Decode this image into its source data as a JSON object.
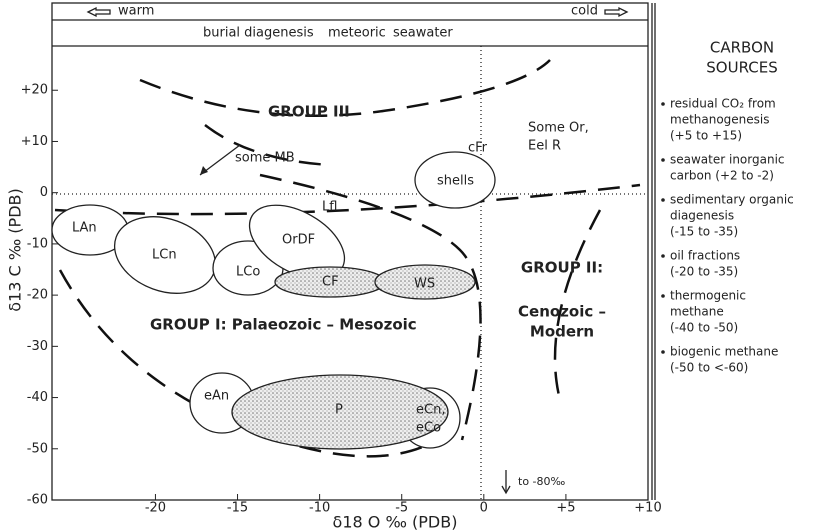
{
  "chart_data": {
    "type": "diagram",
    "xlabel": "δ18 O ‰ (PDB)",
    "ylabel": "δ13 C ‰ (PDB)",
    "xlim": [
      -26.3,
      10
    ],
    "ylim": [
      -60,
      22
    ],
    "xticks": [
      -20,
      -15,
      -10,
      -5,
      0,
      {
        "value": 5,
        "label": "+5"
      },
      {
        "value": 10,
        "label": "+10"
      }
    ],
    "yticks": [
      {
        "value": 20,
        "label": "+20"
      },
      {
        "value": 10,
        "label": "+10"
      },
      0,
      -10,
      -20,
      -30,
      -40,
      -50,
      -60
    ],
    "header": {
      "warm": "warm",
      "cold": "cold",
      "zones": [
        "burial diagenesis",
        "meteoric",
        "seawater"
      ]
    },
    "groups": [
      "GROUP III",
      "GROUP II:",
      "Cenozoic –",
      "Modern",
      "GROUP I: Palaeozoic – Mesozoic"
    ],
    "fields": [
      "LAn",
      "LCn",
      "LCo",
      "OrDF",
      "CF",
      "WS",
      "shells",
      "eAn",
      "P",
      "eCn,",
      "eCo"
    ],
    "annotations": [
      "some MB",
      "cFr",
      "Some Or,",
      "Eel R",
      "Lfl",
      "to -80‰"
    ],
    "sources": {
      "title": [
        "CARBON",
        "SOURCES"
      ],
      "items": [
        [
          "residual CO₂ from",
          "methanogenesis",
          "(+5 to +15)"
        ],
        [
          "seawater inorganic",
          "carbon (+2 to -2)"
        ],
        [
          "sedimentary organic",
          "diagenesis",
          "(-15 to -35)"
        ],
        [
          "oil fractions",
          "(-20 to -35)"
        ],
        [
          "thermogenic",
          "methane",
          "(-40 to -50)"
        ],
        [
          "biogenic methane",
          "(-50 to <-60)"
        ]
      ]
    }
  }
}
